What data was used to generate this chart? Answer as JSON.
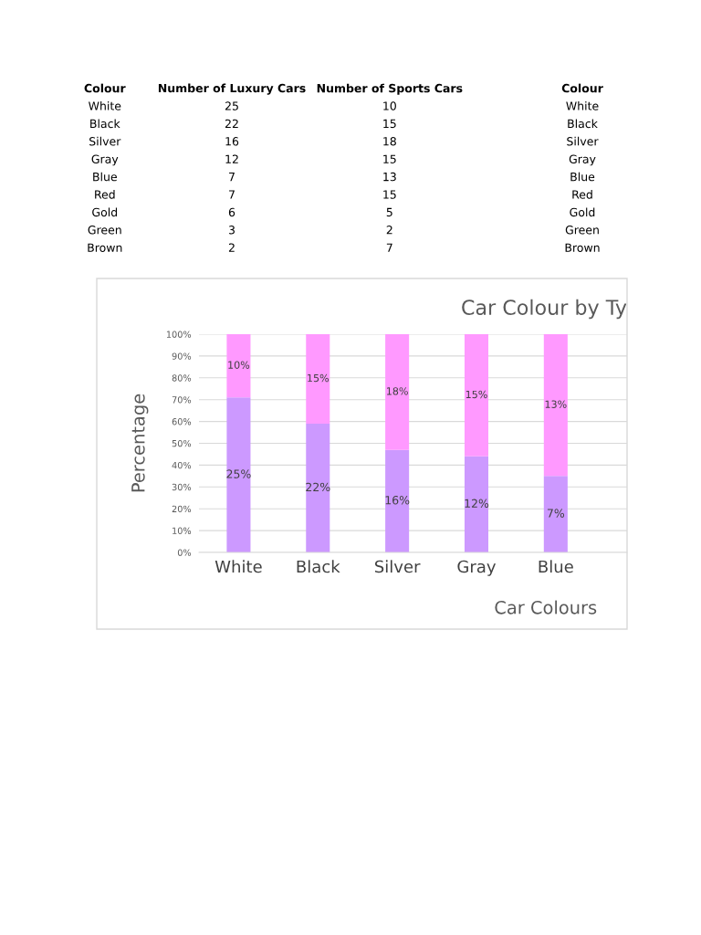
{
  "chart_data": [
    {
      "type": "other",
      "annotations": [
        "Colour",
        "Number of Luxury Cars",
        "Number of Sports Cars",
        "Colour",
        "White",
        "25",
        "10",
        "White",
        "Black",
        "22",
        "15",
        "Black",
        "Silver",
        "16",
        "18",
        "Silver",
        "Gray",
        "12",
        "15",
        "Gray",
        "Blue",
        "7",
        "13",
        "Blue",
        "Red",
        "7",
        "15",
        "Red",
        "Gold",
        "6",
        "5",
        "Gold",
        "Green",
        "3",
        "2",
        "Green",
        "Brown",
        "2",
        "7",
        "Brown"
      ]
    },
    {
      "type": "bar",
      "title": "Car Colour by Ty",
      "xlabel": "Car Colours",
      "ylabel": "Percentage",
      "stacked": true,
      "categories": [
        "White",
        "Black",
        "Silver",
        "Gray",
        "Blue"
      ],
      "series": [
        {
          "color": "#cc99ff",
          "values": [
            71,
            59,
            47,
            44,
            35
          ]
        },
        {
          "color": "#ff99ff",
          "values": [
            29,
            41,
            53,
            56,
            65
          ]
        }
      ],
      "annotations": [
        "25%",
        "22%",
        "16%",
        "12%",
        "7%",
        "10%",
        "15%",
        "18%",
        "15%",
        "13%"
      ],
      "ylim": [
        0,
        100
      ],
      "yticks": [
        {
          "value": 0,
          "label": "0%"
        },
        {
          "value": 10,
          "label": "10%"
        },
        {
          "value": 20,
          "label": "20%"
        },
        {
          "value": 30,
          "label": "30%"
        },
        {
          "value": 40,
          "label": "40%"
        },
        {
          "value": 50,
          "label": "50%"
        },
        {
          "value": 60,
          "label": "60%"
        },
        {
          "value": 70,
          "label": "70%"
        },
        {
          "value": 80,
          "label": "80%"
        },
        {
          "value": 90,
          "label": "90%"
        },
        {
          "value": 100,
          "label": "100%"
        }
      ],
      "grid": "y"
    }
  ]
}
